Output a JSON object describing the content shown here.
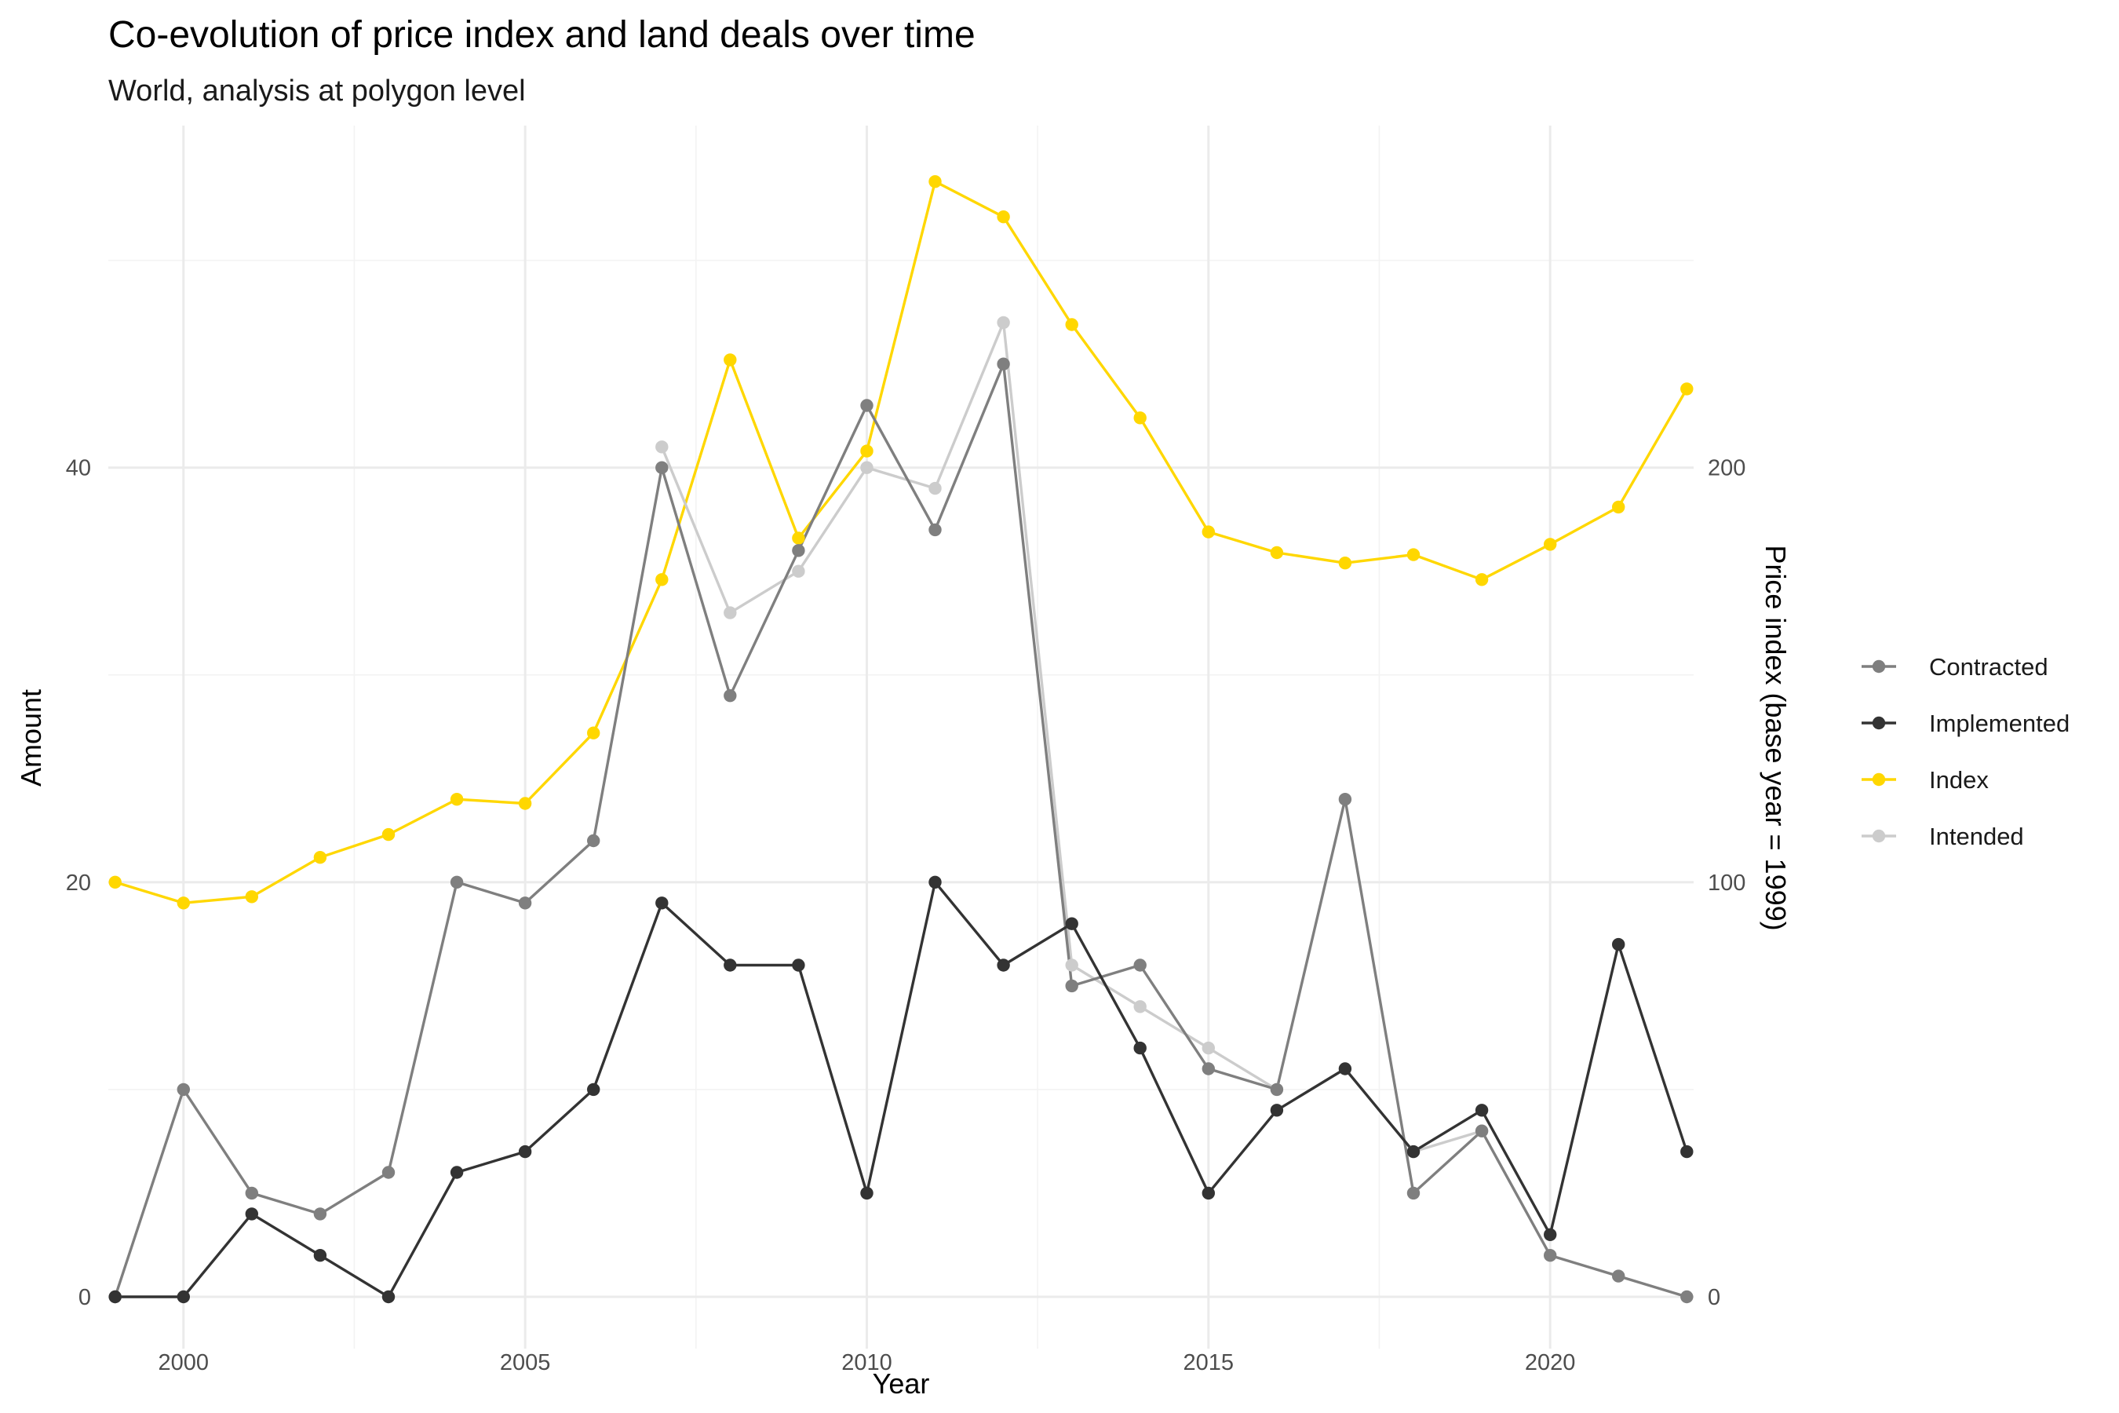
{
  "chart_data": {
    "type": "line",
    "title": "Co-evolution of price index and land deals over time",
    "subtitle": "World, analysis at polygon level",
    "xlabel": "Year",
    "ylabel": "Amount",
    "y2label": "Price index (base year = 1999)",
    "xlim": [
      1998.9,
      2022.1
    ],
    "ylim": [
      -2.5,
      56.5
    ],
    "y2lim": [
      -12.5,
      282.5
    ],
    "x_ticks": [
      2000,
      2005,
      2010,
      2015,
      2020
    ],
    "y_ticks": [
      0,
      20,
      40
    ],
    "y2_ticks": [
      0,
      100,
      200
    ],
    "grid": true,
    "legend_position": "right",
    "x": [
      1999,
      2000,
      2001,
      2002,
      2003,
      2004,
      2005,
      2006,
      2007,
      2008,
      2009,
      2010,
      2011,
      2012,
      2013,
      2014,
      2015,
      2016,
      2017,
      2018,
      2019,
      2020,
      2021,
      2022
    ],
    "series": [
      {
        "name": "Contracted",
        "color": "#7f7f7f",
        "axis": "left",
        "values": [
          0,
          10,
          5,
          4,
          6,
          20,
          19,
          22,
          40,
          29,
          36,
          43,
          37,
          45,
          15,
          16,
          11,
          10,
          24,
          5,
          8,
          2,
          1,
          0
        ]
      },
      {
        "name": "Implemented",
        "color": "#333333",
        "axis": "left",
        "values": [
          0,
          0,
          4,
          2,
          0,
          6,
          7,
          10,
          19,
          16,
          16,
          5,
          20,
          16,
          18,
          12,
          5,
          9,
          11,
          7,
          9,
          3,
          17,
          7
        ]
      },
      {
        "name": "Index",
        "color": "#ffd700",
        "axis": "right",
        "values": [
          100,
          95,
          96.5,
          106,
          111.5,
          120,
          119,
          136,
          173,
          226,
          183,
          204,
          269,
          260.5,
          234.5,
          212,
          184.5,
          179.5,
          177,
          179,
          173,
          181.5,
          190.5,
          219
        ]
      },
      {
        "name": "Intended",
        "color": "#cccccc",
        "axis": "left",
        "values": [
          null,
          null,
          null,
          null,
          null,
          null,
          null,
          null,
          41,
          33,
          35,
          40,
          39,
          47,
          16,
          14,
          12,
          10,
          null,
          7,
          8,
          null,
          null,
          null
        ]
      }
    ],
    "legend_order": [
      "Contracted",
      "Implemented",
      "Index",
      "Intended"
    ]
  }
}
